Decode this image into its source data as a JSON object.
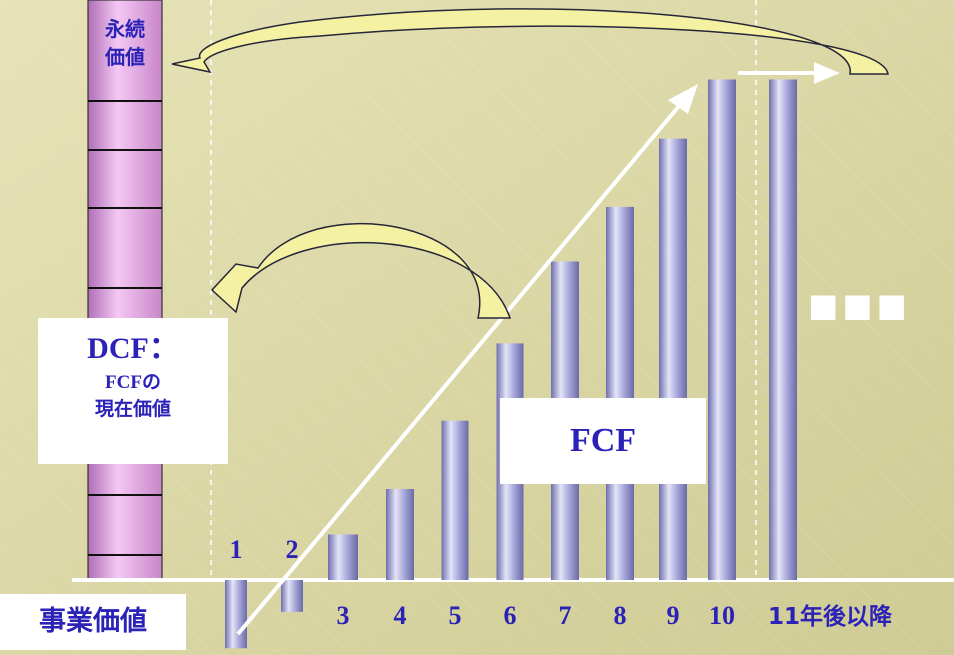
{
  "perpetuity_label": {
    "line1": "永続",
    "line2": "価値"
  },
  "dcf_label": {
    "title": "DCF：",
    "line2": "FCFの",
    "line3": "現在価値"
  },
  "fcf_label": "FCF",
  "business_value_label": "事業価値",
  "ellipsis": "■■■",
  "years": [
    {
      "label": "1",
      "fcf": -1.5
    },
    {
      "label": "2",
      "fcf": -0.7
    },
    {
      "label": "3",
      "fcf": 1.0
    },
    {
      "label": "4",
      "fcf": 2.0
    },
    {
      "label": "5",
      "fcf": 3.5
    },
    {
      "label": "6",
      "fcf": 5.2
    },
    {
      "label": "7",
      "fcf": 7.0
    },
    {
      "label": "8",
      "fcf": 8.2
    },
    {
      "label": "9",
      "fcf": 9.7
    },
    {
      "label": "10",
      "fcf": 11.0
    },
    {
      "label": "11年後以降",
      "fcf": 11.0
    }
  ],
  "colors": {
    "background": "#dcd8a6",
    "bar": "#9a9ad2",
    "bar_shade": "#6f6fae",
    "bar_highlight": "#e4e4f8",
    "stack": "#e6a8e6",
    "stack_shade": "#b06fb6",
    "arrow_fill": "#f4f2a2",
    "arrow_stroke": "#26263a",
    "text_blue": "#2b22b8",
    "white": "#ffffff"
  }
}
